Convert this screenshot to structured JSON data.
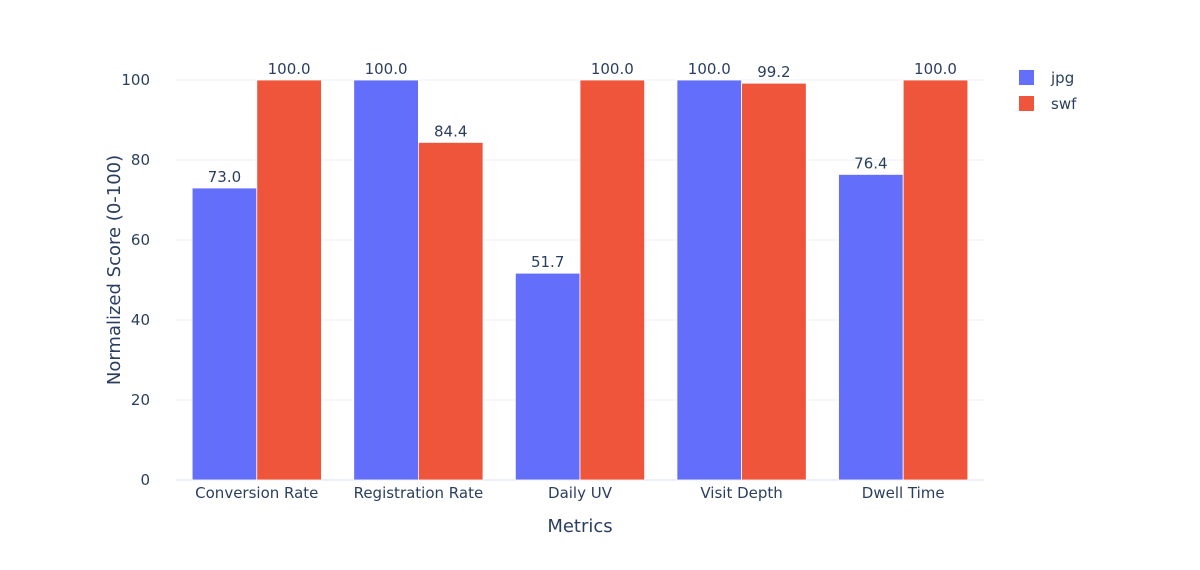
{
  "chart_data": {
    "type": "bar",
    "categories": [
      "Conversion Rate",
      "Registration Rate",
      "Daily UV",
      "Visit Depth",
      "Dwell Time"
    ],
    "series": [
      {
        "name": "jpg",
        "values": [
          73.0,
          100.0,
          51.7,
          100.0,
          76.4
        ],
        "labels": [
          "73.0",
          "100.0",
          "51.7",
          "100.0",
          "76.4"
        ],
        "color": "#636efa"
      },
      {
        "name": "swf",
        "values": [
          100.0,
          84.4,
          100.0,
          99.2,
          100.0
        ],
        "labels": [
          "100.0",
          "84.4",
          "100.0",
          "99.2",
          "100.0"
        ],
        "color": "#ef553b"
      }
    ],
    "xlabel": "Metrics",
    "ylabel": "Normalized Score (0-100)",
    "ylim": [
      0,
      100
    ],
    "yticks": [
      0,
      20,
      40,
      60,
      80,
      100
    ],
    "ytick_labels": [
      "0",
      "20",
      "40",
      "60",
      "80",
      "100"
    ],
    "grid": true,
    "legend_position": "top-right",
    "bar_mode": "group",
    "text_position": "outside"
  }
}
